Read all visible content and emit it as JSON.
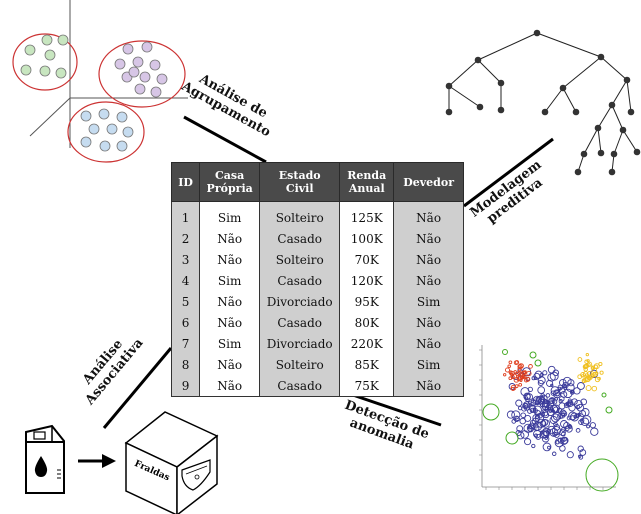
{
  "table": {
    "headers": [
      [
        "ID"
      ],
      [
        "Casa",
        "Própria"
      ],
      [
        "Estado",
        "Civil"
      ],
      [
        "Renda",
        "Anual"
      ],
      [
        "Devedor"
      ]
    ],
    "rows": [
      [
        "1",
        "Sim",
        "Solteiro",
        "125K",
        "Não"
      ],
      [
        "2",
        "Não",
        "Casado",
        "100K",
        "Não"
      ],
      [
        "3",
        "Não",
        "Solteiro",
        "70K",
        "Não"
      ],
      [
        "4",
        "Sim",
        "Casado",
        "120K",
        "Não"
      ],
      [
        "5",
        "Não",
        "Divorciado",
        "95K",
        "Sim"
      ],
      [
        "6",
        "Não",
        "Casado",
        "80K",
        "Não"
      ],
      [
        "7",
        "Sim",
        "Divorciado",
        "220K",
        "Não"
      ],
      [
        "8",
        "Não",
        "Solteiro",
        "85K",
        "Sim"
      ],
      [
        "9",
        "Não",
        "Casado",
        "75K",
        "Não"
      ]
    ]
  },
  "labels": {
    "clustering": [
      "Análise de",
      "Agrupamento"
    ],
    "predictive": [
      "Modelagem",
      "preditiva"
    ],
    "associative": [
      "Análise",
      "Associativa"
    ],
    "anomaly": [
      "Detecção de",
      "anomalia"
    ]
  },
  "box_label": "Fraldas",
  "colors": {
    "cluster_green": "#c8e6c0",
    "cluster_purple": "#d7c6e6",
    "cluster_blue": "#c6dcf0",
    "cluster_ring": "#cc3333",
    "anomaly_blue": "#3a3a9a",
    "anomaly_red": "#e04020",
    "anomaly_yellow": "#f0c020",
    "anomaly_green": "#44aa22",
    "header": "#4a4a4a"
  }
}
